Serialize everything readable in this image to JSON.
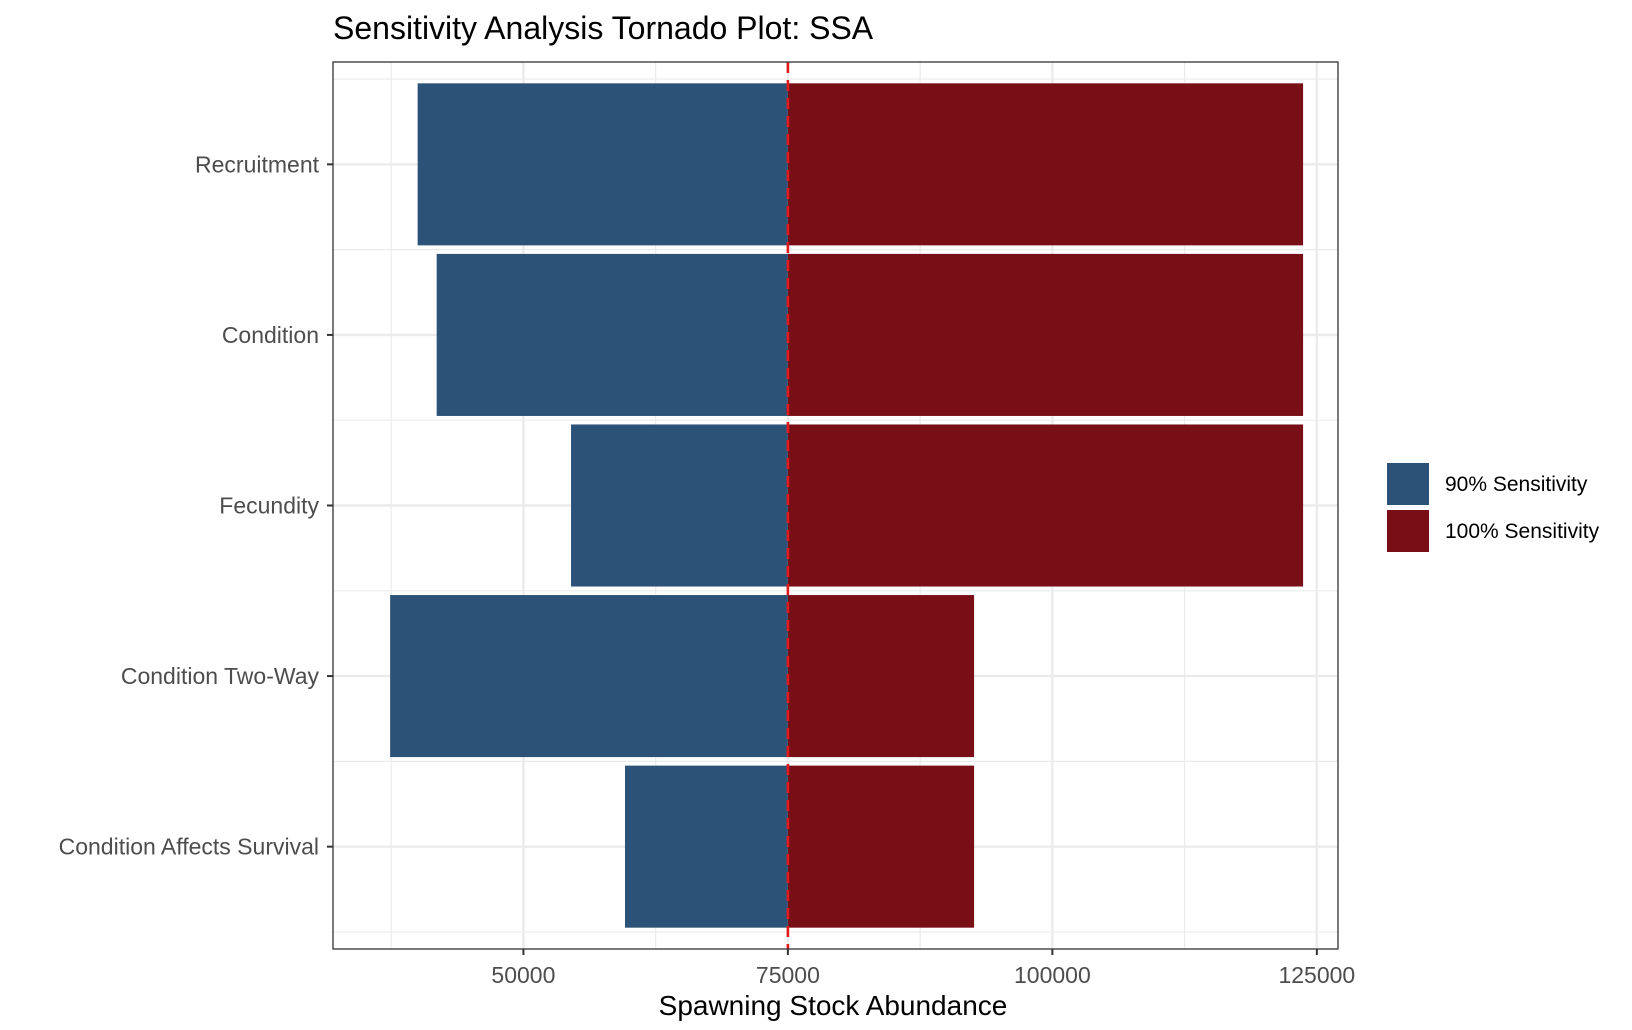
{
  "chart_data": {
    "type": "bar",
    "orientation": "horizontal",
    "title": "Sensitivity Analysis Tornado Plot: SSA",
    "xlabel": "Spawning Stock Abundance",
    "ylabel": "",
    "baseline": 75000,
    "xlim": [
      32000,
      127000
    ],
    "x_ticks": [
      50000,
      75000,
      100000,
      125000
    ],
    "x_tick_labels": [
      "50000",
      "75000",
      "100000",
      "125000"
    ],
    "categories": [
      "Recruitment",
      "Condition",
      "Fecundity",
      "Condition Two-Way",
      "Condition Affects Survival"
    ],
    "series": [
      {
        "name": "90% Sensitivity",
        "color": "#2c5278",
        "values": [
          40000,
          41800,
          54500,
          37400,
          59600
        ]
      },
      {
        "name": "100% Sensitivity",
        "color": "#780f17",
        "values": [
          123700,
          123700,
          123700,
          92600,
          92600
        ]
      }
    ],
    "legend_position": "right",
    "grid": true,
    "reference_line_color": "#e31a1c"
  }
}
